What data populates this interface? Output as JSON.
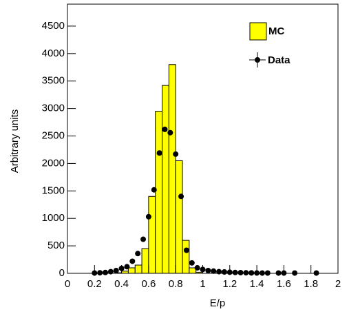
{
  "chart_data": {
    "type": "histogram",
    "x_label": "E/p",
    "y_label": "Arbitrary units",
    "bins": [
      0.35,
      0.4,
      0.45,
      0.5,
      0.55,
      0.6,
      0.65,
      0.7,
      0.75,
      0.8,
      0.85,
      0.9,
      0.95,
      1.0
    ],
    "series": [
      {
        "name": "MC",
        "color": "#ffff00",
        "values": [
          10,
          40,
          100,
          150,
          450,
          1400,
          2950,
          3420,
          3800,
          2050,
          600,
          100,
          20
        ]
      },
      {
        "name": "Data",
        "color": "#000000",
        "x": [
          0.2,
          0.24,
          0.28,
          0.32,
          0.36,
          0.4,
          0.44,
          0.48,
          0.52,
          0.56,
          0.6,
          0.64,
          0.68,
          0.72,
          0.76,
          0.8,
          0.84,
          0.88,
          0.92,
          0.96,
          1.0,
          1.04,
          1.08,
          1.12,
          1.16,
          1.2,
          1.24,
          1.28,
          1.32,
          1.36,
          1.4,
          1.44,
          1.48,
          1.56,
          1.6,
          1.68,
          1.84
        ],
        "values": [
          5,
          10,
          15,
          30,
          50,
          90,
          120,
          220,
          360,
          620,
          1030,
          1520,
          2190,
          2620,
          2560,
          2170,
          1400,
          420,
          190,
          100,
          70,
          50,
          40,
          30,
          25,
          20,
          15,
          12,
          10,
          8,
          6,
          5,
          5,
          5,
          5,
          5,
          5
        ]
      }
    ],
    "xlim": [
      0,
      2
    ],
    "ylim": [
      0,
      4900
    ],
    "xticks": [
      0,
      0.2,
      0.4,
      0.6,
      0.8,
      1,
      1.2,
      1.4,
      1.6,
      1.8,
      2
    ],
    "yticks": [
      0,
      500,
      1000,
      1500,
      2000,
      2500,
      3000,
      3500,
      4000,
      4500
    ],
    "legend": "top-right"
  }
}
